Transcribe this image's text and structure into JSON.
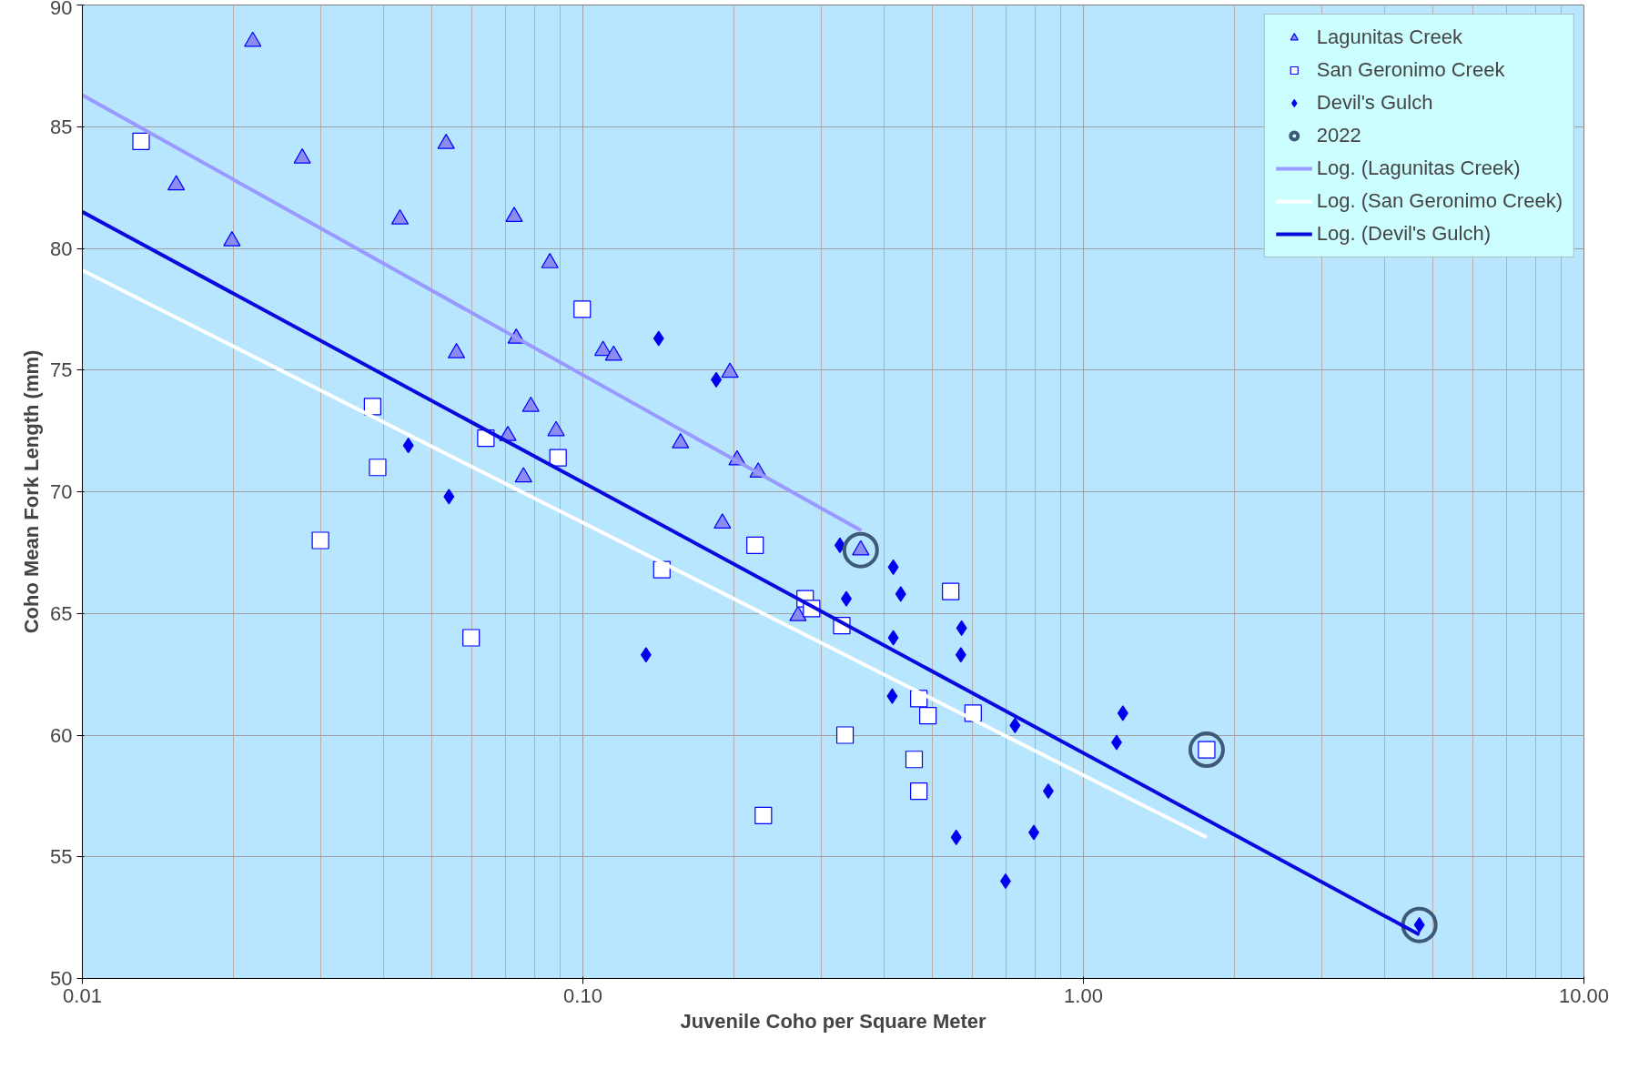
{
  "chart_data": {
    "type": "scatter",
    "xlabel": "Juvenile Coho per Square Meter",
    "ylabel": "Coho Mean Fork Length (mm)",
    "log": "x",
    "xlim": [
      0.01,
      10
    ],
    "xticks": [
      {
        "value": 0.01,
        "label": "0.01"
      },
      {
        "value": 0.1,
        "label": "0.10"
      },
      {
        "value": 1,
        "label": "1.00"
      },
      {
        "value": 10,
        "label": "10.00"
      }
    ],
    "ylim": [
      50,
      90
    ],
    "yticks": [
      50,
      55,
      60,
      65,
      70,
      75,
      80,
      85,
      90
    ],
    "grid": true,
    "legend": "top right",
    "series": [
      {
        "name": "Lagunitas Creek",
        "marker": "triangle",
        "color": "#8c8cf0",
        "x": [
          0.0219,
          0.0154,
          0.0199,
          0.0275,
          0.0533,
          0.0431,
          0.0559,
          0.0729,
          0.0859,
          0.0736,
          0.0787,
          0.0884,
          0.0708,
          0.0761,
          0.1097,
          0.1152,
          0.1567,
          0.1967,
          0.2033,
          0.224,
          0.19,
          0.269,
          0.359
        ],
        "values": [
          88.5,
          82.6,
          80.3,
          83.7,
          84.3,
          81.2,
          75.7,
          81.3,
          79.4,
          76.3,
          73.5,
          72.5,
          72.3,
          70.6,
          75.8,
          75.6,
          72.0,
          74.9,
          71.3,
          70.8,
          68.7,
          64.9,
          67.6
        ]
      },
      {
        "name": "San Geronimo Creek",
        "marker": "square",
        "color": "#0000ff",
        "x": [
          0.0131,
          0.038,
          0.0389,
          0.0299,
          0.0598,
          0.064,
          0.0892,
          0.0997,
          0.1438,
          0.2208,
          0.2294,
          0.278,
          0.2864,
          0.329,
          0.334,
          0.459,
          0.469,
          0.469,
          0.489,
          0.543,
          0.602,
          1.763
        ],
        "values": [
          84.4,
          73.5,
          71.0,
          68.0,
          64.0,
          72.2,
          71.4,
          77.5,
          66.8,
          67.8,
          56.7,
          65.6,
          65.2,
          64.5,
          60.0,
          59.0,
          61.5,
          57.7,
          60.8,
          65.9,
          60.9,
          59.4
        ]
      },
      {
        "name": "Devil's Gulch",
        "marker": "diamond",
        "color": "#0000ee",
        "x": [
          0.0448,
          0.054,
          0.1417,
          0.1337,
          0.1847,
          0.3262,
          0.336,
          0.417,
          0.4315,
          0.417,
          0.415,
          0.571,
          0.569,
          0.557,
          0.73,
          0.699,
          0.796,
          0.851,
          1.165,
          1.199,
          4.69
        ],
        "values": [
          71.9,
          69.8,
          76.3,
          63.3,
          74.6,
          67.8,
          65.6,
          66.9,
          65.8,
          64.0,
          61.6,
          64.4,
          63.3,
          55.8,
          60.4,
          54.0,
          56.0,
          57.7,
          59.7,
          60.9,
          52.2
        ]
      },
      {
        "name": "2022",
        "marker": "circle",
        "color": "#3d5a78",
        "x": [
          0.359,
          1.763,
          4.69
        ],
        "values": [
          67.6,
          59.4,
          52.2
        ]
      },
      {
        "name": "Log. (Lagunitas Creek)",
        "type": "line",
        "color": "#9999ff",
        "x": [
          0.01,
          0.36
        ],
        "values": [
          86.3,
          68.4
        ]
      },
      {
        "name": "Log. (San Geronimo Creek)",
        "type": "line",
        "color": "#ffffff",
        "x": [
          0.01,
          1.763
        ],
        "values": [
          79.1,
          55.8
        ]
      },
      {
        "name": "Log. (Devil's Gulch)",
        "type": "line",
        "color": "#0a0adf",
        "x": [
          0.01,
          4.69
        ],
        "values": [
          81.5,
          51.8
        ]
      }
    ]
  }
}
